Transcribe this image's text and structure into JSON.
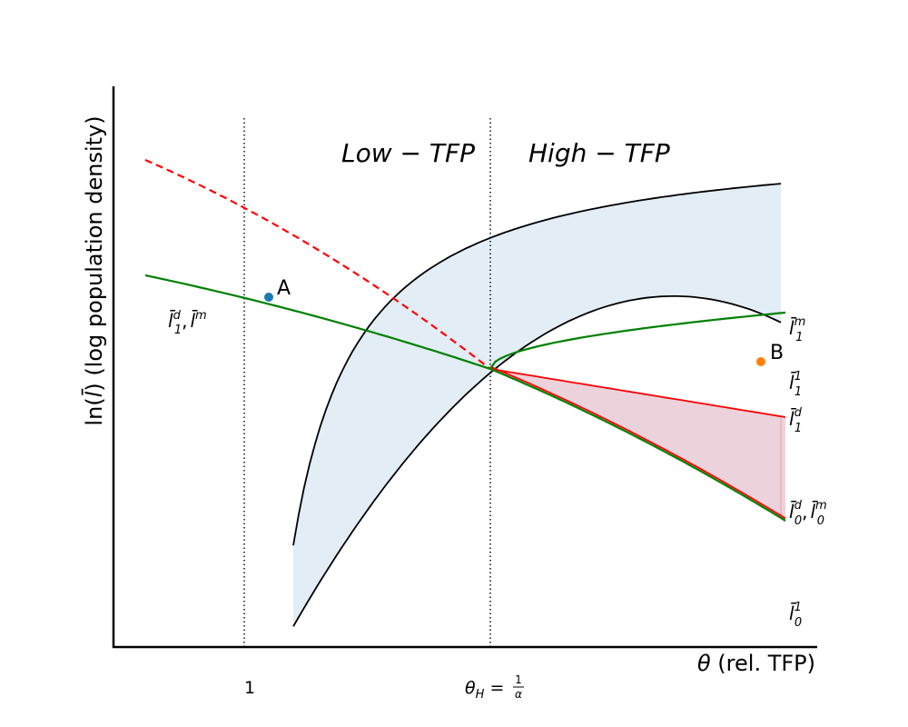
{
  "chart_data": {
    "type": "line",
    "title": "",
    "xlabel": "θ (rel. TFP)",
    "ylabel": "ln(l̄) (log population density)",
    "x_ticks": [
      {
        "label": "1"
      },
      {
        "label": "θH = 1/α"
      }
    ],
    "regions": [
      {
        "label": "Low − TFP"
      },
      {
        "label": "High − TFP"
      }
    ],
    "points": [
      {
        "label": "A",
        "color": "#1f77b4"
      },
      {
        "label": "B",
        "color": "#ff7f0e"
      }
    ],
    "series": [
      {
        "name": "l̄1^d, l̄^m",
        "color": "#008000",
        "style": "solid"
      },
      {
        "color": "#ff0000",
        "style": "dashed"
      },
      {
        "name": "l̄1^m",
        "color": "#008000",
        "style": "solid"
      },
      {
        "name": "l̄0^d, l̄0^m",
        "color": "#008000",
        "style": "solid"
      },
      {
        "name": "l̄1^d",
        "color": "#ff0000",
        "style": "solid"
      },
      {
        "name": "l̄1^1",
        "color": "#000000",
        "style": "solid"
      },
      {
        "name": "l̄0^1",
        "color": "#000000",
        "style": "solid"
      }
    ],
    "bands": [
      {
        "between": [
          "l̄1^1",
          "l̄0^1"
        ],
        "color": "#d6e6f2"
      },
      {
        "between": [
          "l̄1^d",
          "l̄0^d, l̄0^m"
        ],
        "color": "#e8c4cf"
      }
    ],
    "grid": false,
    "legend": "none"
  },
  "labels": {
    "A": "A",
    "B": "B",
    "tick_one": "1",
    "theta_sym": "θ",
    "theta_sub": "H",
    "equals": " = ",
    "frac_num": "1",
    "frac_den": "α",
    "xlabel_theta": "θ",
    "xlabel_rest": " (rel. TFP)",
    "ylabel_pre": "ln(",
    "ylabel_l": "l̄",
    "ylabel_post": ") (log population density)",
    "region_low": "Low − TFP",
    "region_high": "High − TFP",
    "lbar": "l̄",
    "sup_d": "d",
    "sup_m": "m",
    "sup_1": "1",
    "sub_1": "1",
    "sub_0": "0",
    "comma": ","
  }
}
